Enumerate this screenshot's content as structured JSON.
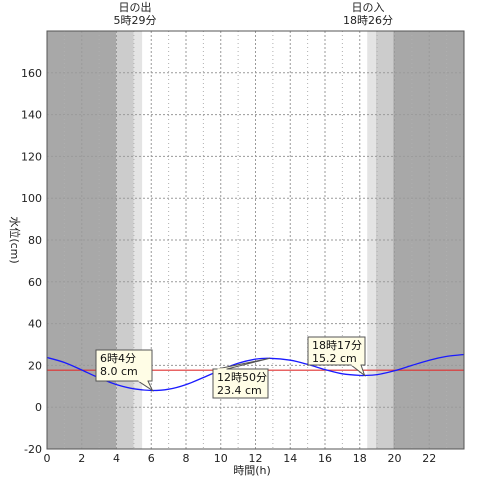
{
  "chart_data": {
    "type": "line",
    "xlabel": "時間(h)",
    "ylabel": "水位(cm)",
    "xlim": [
      0,
      24
    ],
    "ylim": [
      -20,
      180
    ],
    "xticks": [
      0,
      2,
      4,
      6,
      8,
      10,
      12,
      14,
      16,
      18,
      20,
      22
    ],
    "yticks": [
      -20,
      0,
      20,
      40,
      60,
      80,
      100,
      120,
      140,
      160
    ],
    "grid": true,
    "sunrise": {
      "label": "日の出",
      "time_label": "5時29分",
      "hour": 5.48
    },
    "sunset": {
      "label": "日の入",
      "time_label": "18時26分",
      "hour": 18.43
    },
    "reference_line": {
      "y": 17.7,
      "color": "#e03030"
    },
    "series": [
      {
        "color": "#1a1aff",
        "x": [
          0,
          1,
          2,
          3,
          4,
          5,
          6.07,
          7,
          8,
          9,
          10,
          11,
          12,
          12.83,
          14,
          15,
          16,
          17,
          18,
          18.28,
          19,
          20,
          21,
          22,
          23,
          24
        ],
        "y": [
          23.8,
          21.4,
          17.8,
          14.0,
          10.8,
          8.8,
          8.0,
          8.6,
          10.8,
          14.2,
          17.8,
          21.0,
          23.0,
          23.4,
          22.5,
          20.5,
          18.0,
          16.0,
          15.2,
          15.2,
          15.6,
          17.4,
          20.0,
          22.5,
          24.3,
          25.2
        ]
      }
    ],
    "annotations": [
      {
        "time": "6時4分",
        "value": "8.0 cm",
        "x": 6.07,
        "y": 8.0
      },
      {
        "time": "12時50分",
        "value": "23.4 cm",
        "x": 12.83,
        "y": 23.4
      },
      {
        "time": "18時17分",
        "value": "15.2 cm",
        "x": 18.28,
        "y": 15.2
      }
    ],
    "colors": {
      "night": "#a8a8a8",
      "twilight_dark": "#cccccc",
      "twilight_light": "#e4e4e4",
      "day": "#ffffff",
      "grid": "#9a9a9a",
      "callout_fill": "#fffde6"
    }
  }
}
